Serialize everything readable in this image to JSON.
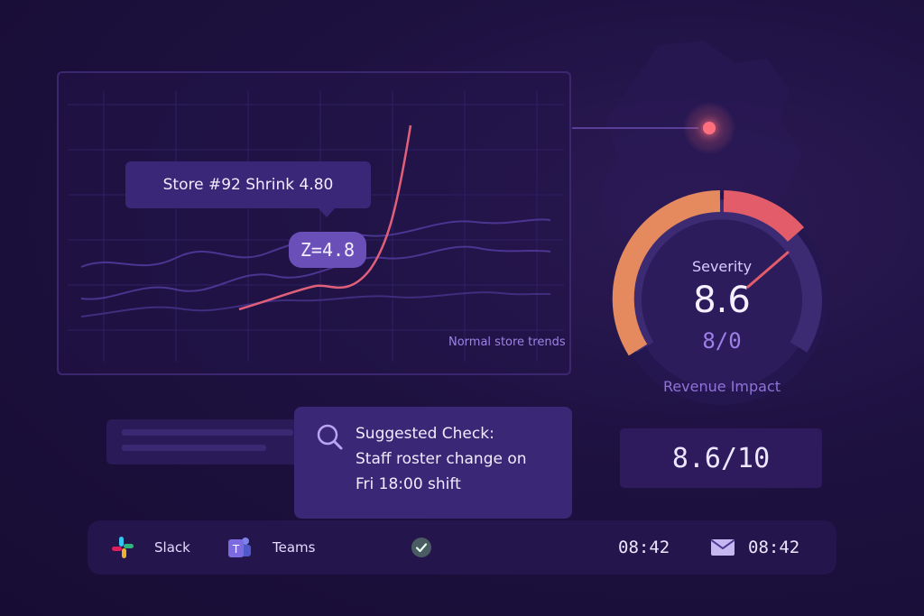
{
  "chart": {
    "tooltip_text": "Store #92 Shrink 4.80",
    "z_badge": "Z=4.8",
    "normal_label": "Normal store trends"
  },
  "gauge": {
    "severity_label": "Severity",
    "severity_value": "8.6",
    "severity_sub": "8/0",
    "revenue_label": "Revenue Impact",
    "level": 0.86
  },
  "score": "8.6/10",
  "suggested_check": {
    "line1": "Suggested Check:",
    "line2": "Staff roster change on",
    "line3": "Fri 18:00 shift"
  },
  "bottom_bar": {
    "slack_label": "Slack",
    "teams_label": "Teams",
    "time_left": "08:42",
    "time_right": "08:42"
  },
  "colors": {
    "anomaly_line": "#e0607a",
    "gauge_orange": "#e58a5e",
    "gauge_red": "#e25c6a",
    "accent_purple": "#6a4fb8"
  },
  "icons": {
    "search": "magnifier-icon",
    "slack": "slack-icon",
    "teams": "teams-icon",
    "check": "check-circle-icon",
    "mail": "mail-icon"
  }
}
